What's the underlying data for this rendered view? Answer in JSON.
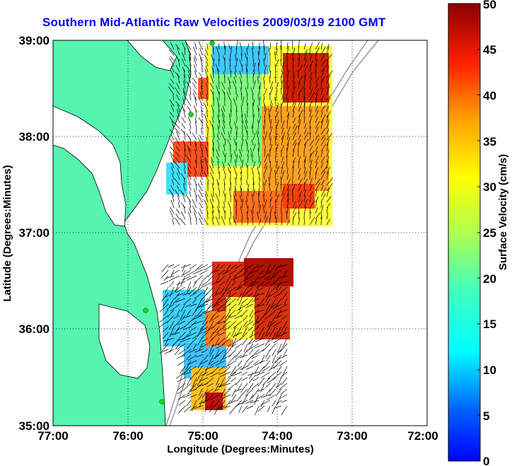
{
  "title": "Southern Mid-Atlantic Raw Velocities 2009/03/19 2100 GMT",
  "xlabel": "Longitude (Degrees:Minutes)",
  "ylabel": "Latitude (Degrees:Minutes)",
  "colorbar_label": "Surface Velocity (cm/s)",
  "x_ticks": [
    "77:00",
    "76:00",
    "75:00",
    "74:00",
    "73:00",
    "72:00"
  ],
  "y_ticks": [
    "39:00",
    "38:00",
    "37:00",
    "36:00",
    "35:00"
  ],
  "colorbar_ticks": [
    "50",
    "45",
    "40",
    "35",
    "30",
    "25",
    "20",
    "15",
    "10",
    "5",
    "0"
  ],
  "colors": {
    "land": "#55f5b0",
    "grid": "#000000",
    "title": "#0000ee",
    "contour": "#9a9a9a",
    "station": "#22cc22"
  },
  "chart_data": {
    "type": "heatmap",
    "title": "Southern Mid-Atlantic Raw Velocities 2009/03/19 2100 GMT",
    "xlabel": "Longitude (Degrees:Minutes)",
    "ylabel": "Latitude (Degrees:Minutes)",
    "xlim": [
      -77,
      -72
    ],
    "ylim": [
      35,
      39
    ],
    "colorbar": {
      "label": "Surface Velocity (cm/s)",
      "range": [
        0,
        50
      ],
      "colormap": "jet"
    },
    "grid": true,
    "regions": [
      {
        "name_hint": "northern",
        "lon": [
          -75.5,
          -73.2
        ],
        "lat": [
          36.9,
          38.95
        ]
      },
      {
        "name_hint": "southern",
        "lon": [
          -75.5,
          -73.5
        ],
        "lat": [
          35.2,
          36.9
        ]
      }
    ],
    "stations": [
      {
        "lon": -74.9,
        "lat": 38.98
      },
      {
        "lon": -75.1,
        "lat": 38.22
      },
      {
        "lon": -75.75,
        "lat": 36.19
      },
      {
        "lon": -75.55,
        "lat": 35.27
      }
    ]
  }
}
